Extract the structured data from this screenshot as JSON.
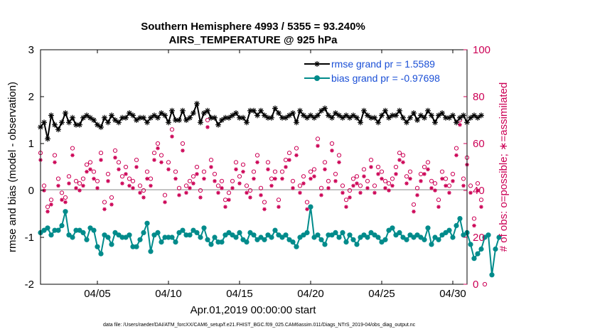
{
  "chart_data": {
    "type": "line",
    "title_line1": "Southern Hemisphere 4993 / 5355 = 93.240%",
    "title_line2": "AIRS_TEMPERATURE @ 925 hPa",
    "ylabel_left": "rmse and bias (model - observation)",
    "ylabel_right": "# of obs: o=possible; ∗=assimilated",
    "xlabel": "Apr.01,2019 00:00:00 start",
    "footnote": "data file: /Users/raeder/DAI/ATM_forcXX/CAM6_setup/f.e21.FHIST_BGC.f09_025.CAM6assim.011/Diags_NTrS_2019-04/obs_diag_output.nc",
    "x_range": [
      1,
      31
    ],
    "ylim_left": [
      -2,
      3
    ],
    "ylim_right": [
      0,
      100
    ],
    "left_ticks": [
      "3",
      "2",
      "1",
      "0",
      "-1",
      "-2"
    ],
    "right_ticks": [
      "100",
      "80",
      "60",
      "40",
      "20",
      "0"
    ],
    "x_tick_positions": [
      5,
      10,
      15,
      20,
      25,
      30
    ],
    "x_tick_labels": [
      "04/05",
      "04/10",
      "04/15",
      "04/20",
      "04/25",
      "04/30"
    ],
    "series": [
      {
        "name": "rmse",
        "legend": "rmse grand pr = 1.5589",
        "color": "#000000",
        "marker": "asterisk",
        "x_start": 1.0,
        "x_step": 0.25,
        "values": [
          1.35,
          1.45,
          1.1,
          1.6,
          1.4,
          1.3,
          1.45,
          1.65,
          1.45,
          1.55,
          1.4,
          1.4,
          1.55,
          1.6,
          1.55,
          1.5,
          1.4,
          1.35,
          1.55,
          1.45,
          1.6,
          1.5,
          1.45,
          1.55,
          1.55,
          1.65,
          1.6,
          1.5,
          1.55,
          1.55,
          1.45,
          1.55,
          1.6,
          1.55,
          1.65,
          1.6,
          1.45,
          1.7,
          1.5,
          1.5,
          1.7,
          1.5,
          1.55,
          1.65,
          1.85,
          1.45,
          1.65,
          1.7,
          1.55,
          1.55,
          1.4,
          1.5,
          1.55,
          1.55,
          1.6,
          1.65,
          1.55,
          1.55,
          1.45,
          1.7,
          1.7,
          1.6,
          1.7,
          1.6,
          1.55,
          1.55,
          1.75,
          1.65,
          1.55,
          1.55,
          1.6,
          1.65,
          1.45,
          1.7,
          1.6,
          1.55,
          1.6,
          1.55,
          1.6,
          1.7,
          1.75,
          1.6,
          1.55,
          1.65,
          1.6,
          1.55,
          1.6,
          1.55,
          1.6,
          1.55,
          1.45,
          1.7,
          1.6,
          1.55,
          1.55,
          1.45,
          1.6,
          1.7,
          1.55,
          1.6,
          1.6,
          1.7,
          1.55,
          1.45,
          1.55,
          1.65,
          1.5,
          1.6,
          1.55,
          1.7,
          1.6,
          1.45,
          1.6,
          1.65,
          1.55,
          1.55,
          1.6,
          1.45,
          1.55,
          1.6,
          1.45,
          1.55,
          1.6,
          1.55,
          1.6
        ]
      },
      {
        "name": "bias",
        "legend": "bias grand pr = -0.97698",
        "color": "#008b8b",
        "marker": "circle",
        "x_start": 1.0,
        "x_step": 0.25,
        "values": [
          -0.9,
          -0.85,
          -0.8,
          -0.95,
          -0.85,
          -0.85,
          -0.75,
          -0.45,
          -0.95,
          -1.0,
          -0.85,
          -0.85,
          -0.9,
          -1.05,
          -0.8,
          -0.85,
          -1.2,
          -1.35,
          -0.95,
          -1.0,
          -1.15,
          -0.9,
          -0.95,
          -1.0,
          -1.0,
          -0.95,
          -1.2,
          -1.2,
          -1.05,
          -0.9,
          -0.7,
          -1.3,
          -0.95,
          -0.9,
          -1.1,
          -1.0,
          -1.0,
          -1.0,
          -1.1,
          -0.9,
          -0.85,
          -0.95,
          -0.95,
          -0.85,
          -0.9,
          -1.0,
          -0.8,
          -1.05,
          -1.15,
          -1.0,
          -1.1,
          -1.1,
          -0.95,
          -0.9,
          -0.95,
          -1.0,
          -0.9,
          -1.05,
          -1.1,
          -0.9,
          -0.95,
          -1.05,
          -1.0,
          -1.05,
          -0.95,
          -1.0,
          -0.85,
          -0.95,
          -1.0,
          -0.95,
          -1.05,
          -1.1,
          -1.2,
          -1.0,
          -0.95,
          -0.9,
          -0.35,
          -1.0,
          -0.95,
          -1.05,
          -1.15,
          -0.95,
          -0.95,
          -0.9,
          -1.0,
          -0.9,
          -1.1,
          -0.95,
          -1.05,
          -1.15,
          -1.0,
          -0.95,
          -1.0,
          -0.9,
          -0.95,
          -1.0,
          -1.1,
          -1.05,
          -0.85,
          -0.8,
          -0.95,
          -0.9,
          -1.0,
          -1.05,
          -0.95,
          -1.0,
          -0.95,
          -1.0,
          -1.05,
          -0.8,
          -1.15,
          -1.0,
          -1.05,
          -0.95,
          -0.9,
          -0.85,
          -1.0,
          -0.75,
          -0.6,
          -0.95,
          -0.9,
          -1.15,
          -1.45,
          -1.35,
          -1.25,
          -1.0,
          -0.95,
          -1.8,
          -1.25,
          -1.0
        ]
      },
      {
        "name": "obs_possible",
        "color": "#cc0055",
        "marker": "open-circle",
        "axis": "right",
        "x_start": 1.0,
        "x_step": 0.25,
        "values": [
          56,
          42,
          33,
          36,
          55,
          45,
          39,
          37,
          46,
          58,
          44,
          43,
          45,
          51,
          52,
          48,
          44,
          56,
          35,
          47,
          37,
          57,
          52,
          46,
          50,
          45,
          44,
          53,
          42,
          40,
          48,
          45,
          56,
          60,
          55,
          38,
          52,
          66,
          48,
          41,
          60,
          42,
          44,
          46,
          50,
          40,
          48,
          70,
          53,
          47,
          42,
          44,
          36,
          39,
          44,
          52,
          46,
          51,
          42,
          40,
          48,
          55,
          41,
          35,
          52,
          45,
          48,
          36,
          48,
          53,
          56,
          44,
          58,
          42,
          46,
          35,
          48,
          49,
          62,
          41,
          52,
          44,
          60,
          47,
          55,
          42,
          36,
          40,
          45,
          46,
          42,
          49,
          44,
          53,
          42,
          50,
          48,
          44,
          43,
          45,
          50,
          56,
          55,
          46,
          48,
          34,
          41,
          47,
          50,
          52,
          44,
          43,
          36,
          48,
          45,
          42,
          47,
          58,
          70,
          45,
          54,
          42,
          28,
          43,
          36,
          0
        ]
      },
      {
        "name": "obs_assimilated",
        "color": "#cc0055",
        "marker": "asterisk",
        "axis": "right",
        "x_start": 1.0,
        "x_step": 0.25,
        "values": [
          53,
          40,
          31,
          34,
          52,
          42,
          36,
          35,
          43,
          55,
          41,
          40,
          42,
          48,
          49,
          45,
          41,
          53,
          32,
          44,
          34,
          54,
          49,
          43,
          47,
          42,
          41,
          50,
          39,
          37,
          45,
          42,
          53,
          58,
          52,
          35,
          49,
          63,
          45,
          38,
          57,
          39,
          41,
          43,
          47,
          37,
          45,
          67,
          50,
          44,
          39,
          41,
          33,
          36,
          41,
          49,
          43,
          48,
          39,
          37,
          45,
          52,
          38,
          32,
          49,
          42,
          45,
          33,
          45,
          50,
          53,
          41,
          55,
          39,
          43,
          32,
          45,
          46,
          59,
          38,
          49,
          41,
          57,
          44,
          52,
          39,
          33,
          37,
          42,
          43,
          39,
          46,
          41,
          50,
          39,
          47,
          45,
          41,
          40,
          42,
          47,
          53,
          52,
          43,
          45,
          31,
          38,
          44,
          47,
          49,
          41,
          40,
          33,
          45,
          42,
          39,
          44,
          55,
          68,
          42,
          51,
          39,
          25,
          40,
          33,
          20
        ]
      }
    ]
  }
}
